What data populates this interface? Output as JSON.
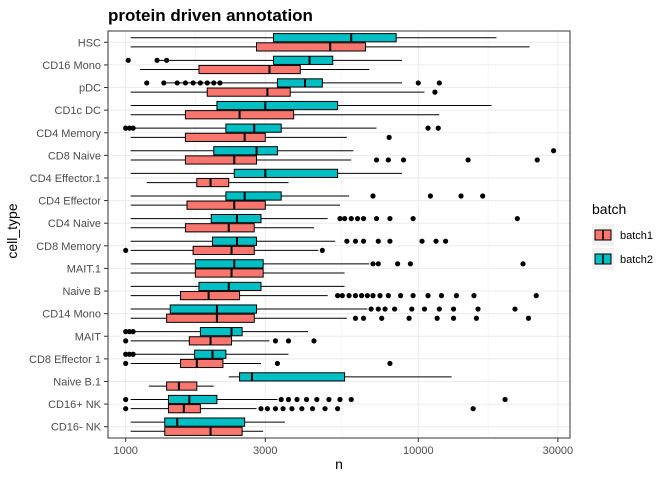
{
  "chart_data": {
    "type": "boxplot",
    "orientation": "horizontal",
    "title": "protein driven annotation",
    "xlabel": "n",
    "ylabel": "cell_type",
    "x_scale": "log10",
    "xlim": [
      870,
      33000
    ],
    "x_ticks": [
      1000,
      3000,
      10000,
      30000
    ],
    "x_tick_labels": [
      "1000",
      "3000",
      "10000",
      "30000"
    ],
    "grid": true,
    "legend": {
      "title": "batch",
      "position": "right",
      "entries": [
        "batch1",
        "batch2"
      ]
    },
    "colors": {
      "batch1": "#F8766D",
      "batch2": "#00BFC4",
      "panel_bg": "#ffffff",
      "grid": "#ebebeb",
      "border": "#333333"
    },
    "categories": [
      "HSC",
      "CD16 Mono",
      "pDC",
      "CD1c DC",
      "CD4 Memory",
      "CD8 Naive",
      "CD4 Effector.1",
      "CD4 Effector",
      "CD4 Naive",
      "CD8 Memory",
      "MAIT.1",
      "Naive B",
      "CD14 Mono",
      "MAIT",
      "CD8 Effector 1",
      "Naive B.1",
      "CD16+ NK",
      "CD16- NK"
    ],
    "series": [
      {
        "name": "batch1",
        "boxes": [
          {
            "category": "HSC",
            "min": 1040,
            "q1": 2800,
            "median": 5000,
            "q3": 6600,
            "max": 24000,
            "outliers": []
          },
          {
            "category": "CD16 Mono",
            "min": 1120,
            "q1": 1780,
            "median": 3100,
            "q3": 3950,
            "max": 6800,
            "outliers": []
          },
          {
            "category": "pDC",
            "min": 1040,
            "q1": 1900,
            "median": 3050,
            "q3": 3650,
            "max": 10500,
            "outliers": [
              11400
            ]
          },
          {
            "category": "CD1c DC",
            "min": 1040,
            "q1": 1600,
            "median": 2450,
            "q3": 3750,
            "max": 11800,
            "outliers": []
          },
          {
            "category": "CD4 Memory",
            "min": 1040,
            "q1": 1600,
            "median": 2550,
            "q3": 3000,
            "max": 5700,
            "outliers": [
              7950
            ]
          },
          {
            "category": "CD8 Naive",
            "min": 1040,
            "q1": 1600,
            "median": 2350,
            "q3": 2800,
            "max": 5900,
            "outliers": [
              7200,
              7900,
              8900,
              14800,
              25500
            ]
          },
          {
            "category": "CD4 Effector.1",
            "min": 1180,
            "q1": 1750,
            "median": 1950,
            "q3": 2250,
            "max": 3600,
            "outliers": []
          },
          {
            "category": "CD4 Effector",
            "min": 1040,
            "q1": 1620,
            "median": 2350,
            "q3": 3000,
            "max": 5400,
            "outliers": []
          },
          {
            "category": "CD4 Naive",
            "min": 1040,
            "q1": 1600,
            "median": 2250,
            "q3": 2750,
            "max": 4400,
            "outliers": []
          },
          {
            "category": "CD8 Memory",
            "min": 1040,
            "q1": 1700,
            "median": 2300,
            "q3": 2750,
            "max": 4550,
            "outliers": [
              1000,
              4700
            ]
          },
          {
            "category": "MAIT.1",
            "min": 1040,
            "q1": 1730,
            "median": 2300,
            "q3": 2950,
            "max": 5600,
            "outliers": []
          },
          {
            "category": "Naive B",
            "min": 1040,
            "q1": 1540,
            "median": 1920,
            "q3": 2450,
            "max": 4900,
            "outliers": [
              5300,
              5500,
              5800,
              6100,
              6400,
              6700,
              7000,
              7400,
              7900,
              8700,
              9600,
              10800,
              12000,
              13500,
              15500,
              25300
            ]
          },
          {
            "category": "CD14 Mono",
            "min": 1040,
            "q1": 1380,
            "median": 2050,
            "q3": 2750,
            "max": 5700,
            "outliers": [
              6100,
              6500,
              7500,
              9300,
              11600,
              13200,
              15800,
              23800
            ]
          },
          {
            "category": "MAIT",
            "min": 1040,
            "q1": 1650,
            "median": 1950,
            "q3": 2300,
            "max": 3100,
            "outliers": [
              1000,
              3250,
              3600,
              4400
            ]
          },
          {
            "category": "CD8 Effector 1",
            "min": 1040,
            "q1": 1540,
            "median": 1750,
            "q3": 2150,
            "max": 2900,
            "outliers": [
              1000,
              3300,
              8000
            ]
          },
          {
            "category": "Naive B.1",
            "min": 1200,
            "q1": 1380,
            "median": 1520,
            "q3": 1750,
            "max": 2000,
            "outliers": []
          },
          {
            "category": "CD16+ NK",
            "min": 1040,
            "q1": 1400,
            "median": 1580,
            "q3": 1800,
            "max": 2800,
            "outliers": [
              1000,
              2900,
              3050,
              3250,
              3450,
              3700,
              4000,
              4350,
              4800,
              5300,
              15400
            ]
          },
          {
            "category": "CD16- NK",
            "min": 1040,
            "q1": 1360,
            "median": 1950,
            "q3": 2500,
            "max": 2950,
            "outliers": []
          }
        ]
      },
      {
        "name": "batch2",
        "boxes": [
          {
            "category": "HSC",
            "min": 1040,
            "q1": 3200,
            "median": 5900,
            "q3": 8400,
            "max": 18500,
            "outliers": []
          },
          {
            "category": "CD16 Mono",
            "min": 1300,
            "q1": 3200,
            "median": 4250,
            "q3": 5100,
            "max": 8800,
            "outliers": [
              1020,
              1280,
              1380
            ]
          },
          {
            "category": "pDC",
            "min": 1380,
            "q1": 3300,
            "median": 4100,
            "q3": 4700,
            "max": 8800,
            "outliers": [
              1180,
              1350,
              1500,
              1600,
              1700,
              1800,
              1900,
              2000,
              2100,
              10000,
              11800
            ]
          },
          {
            "category": "CD1c DC",
            "min": 1040,
            "q1": 2050,
            "median": 3000,
            "q3": 5300,
            "max": 17800,
            "outliers": []
          },
          {
            "category": "CD4 Memory",
            "min": 1040,
            "q1": 2200,
            "median": 2750,
            "q3": 3400,
            "max": 7200,
            "outliers": [
              1000,
              1030,
              1060,
              10800,
              11700
            ]
          },
          {
            "category": "CD8 Naive",
            "min": 1040,
            "q1": 2000,
            "median": 2800,
            "q3": 3300,
            "max": 6000,
            "outliers": [
              29000
            ]
          },
          {
            "category": "CD4 Effector.1",
            "min": 1040,
            "q1": 2350,
            "median": 3000,
            "q3": 5300,
            "max": 8800,
            "outliers": []
          },
          {
            "category": "CD4 Effector",
            "min": 1040,
            "q1": 2200,
            "median": 2550,
            "q3": 3400,
            "max": 5800,
            "outliers": [
              7000,
              11000,
              14000,
              16600
            ]
          },
          {
            "category": "CD4 Naive",
            "min": 1040,
            "q1": 1960,
            "median": 2400,
            "q3": 2900,
            "max": 4900,
            "outliers": [
              5400,
              5600,
              5900,
              6200,
              6500,
              7200,
              8000,
              9600,
              21800
            ]
          },
          {
            "category": "CD8 Memory",
            "min": 1040,
            "q1": 1980,
            "median": 2400,
            "q3": 2800,
            "max": 5200,
            "outliers": [
              5700,
              6100,
              6500,
              7300,
              8000,
              10300,
              11500,
              12400
            ]
          },
          {
            "category": "MAIT.1",
            "min": 1040,
            "q1": 1730,
            "median": 2350,
            "q3": 2950,
            "max": 6800,
            "outliers": [
              7000,
              7300,
              8500,
              9400,
              22800
            ]
          },
          {
            "category": "Naive B",
            "min": 1040,
            "q1": 1780,
            "median": 2250,
            "q3": 2900,
            "max": 5600,
            "outliers": []
          },
          {
            "category": "CD14 Mono",
            "min": 1040,
            "q1": 1420,
            "median": 2050,
            "q3": 2800,
            "max": 6700,
            "outliers": [
              6900,
              7300,
              7700,
              8300,
              9500,
              10500,
              11800,
              13200,
              16000,
              21400
            ]
          },
          {
            "category": "MAIT",
            "min": 1040,
            "q1": 1800,
            "median": 2300,
            "q3": 2500,
            "max": 4200,
            "outliers": [
              1000,
              1030,
              1060
            ]
          },
          {
            "category": "CD8 Effector 1",
            "min": 1040,
            "q1": 1720,
            "median": 1980,
            "q3": 2200,
            "max": 3600,
            "outliers": [
              1000,
              1030,
              1060
            ]
          },
          {
            "category": "Naive B.1",
            "min": 2250,
            "q1": 2450,
            "median": 2700,
            "q3": 5600,
            "max": 13000,
            "outliers": []
          },
          {
            "category": "CD16+ NK",
            "min": 1040,
            "q1": 1400,
            "median": 1650,
            "q3": 2050,
            "max": 3300,
            "outliers": [
              1000,
              3400,
              3600,
              3850,
              4150,
              4500,
              4950,
              5400,
              5900,
              19800
            ]
          },
          {
            "category": "CD16- NK",
            "min": 1040,
            "q1": 1360,
            "median": 1500,
            "q3": 2550,
            "max": 3500,
            "outliers": []
          }
        ]
      }
    ]
  }
}
